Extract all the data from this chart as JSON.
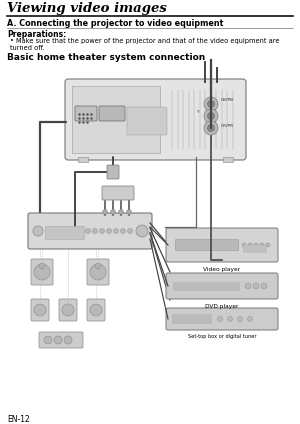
{
  "title": "Viewing video images",
  "section_a": "A. Connecting the projector to video equipment",
  "prep_title": "Preparations:",
  "prep_bullet": "Make sure that the power of the projector and that of the video equipment are turned off.",
  "subsection": "Basic home theater system connection",
  "label_cbpb": "CB/PB",
  "label_y": "Y",
  "label_crpr": "CR/PR",
  "label_video": "Video player",
  "label_dvd": "DVD player",
  "label_settop": "Set-top box or digital tuner",
  "page_num": "EN-12",
  "bg": "#ffffff",
  "fg": "#000000",
  "gray1": "#c8c8c8",
  "gray2": "#a8a8a8",
  "gray3": "#e0e0e0",
  "cable": "#444444",
  "edge": "#777777"
}
